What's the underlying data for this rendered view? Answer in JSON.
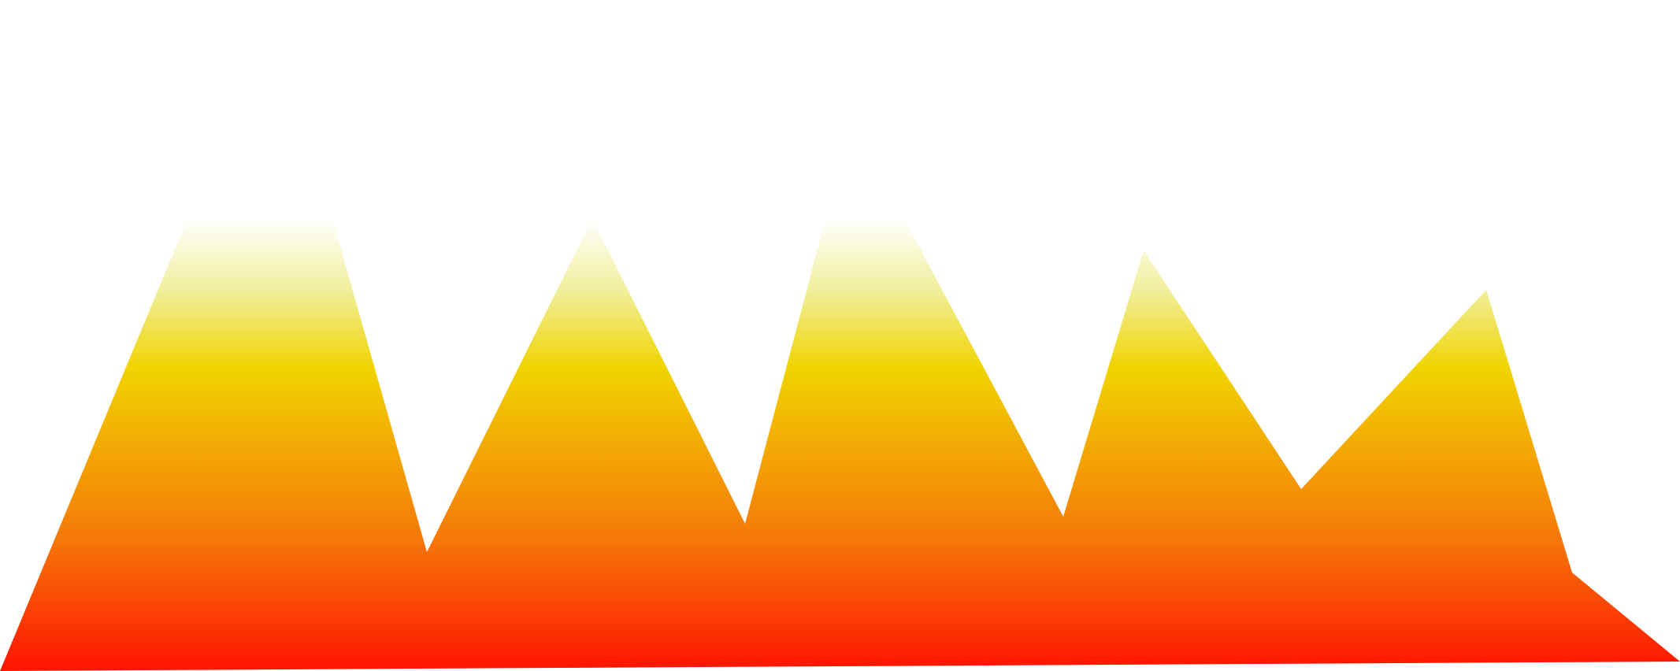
{
  "background_color": "#ffffff",
  "shape": {
    "kind": "jagged-mountain-silhouette",
    "gradient_colors": {
      "top": "#ffffff",
      "upper": "#f0ef9a",
      "middle": "#f0d400",
      "lower": "#f57a08",
      "bottom": "#ff1400"
    }
  }
}
